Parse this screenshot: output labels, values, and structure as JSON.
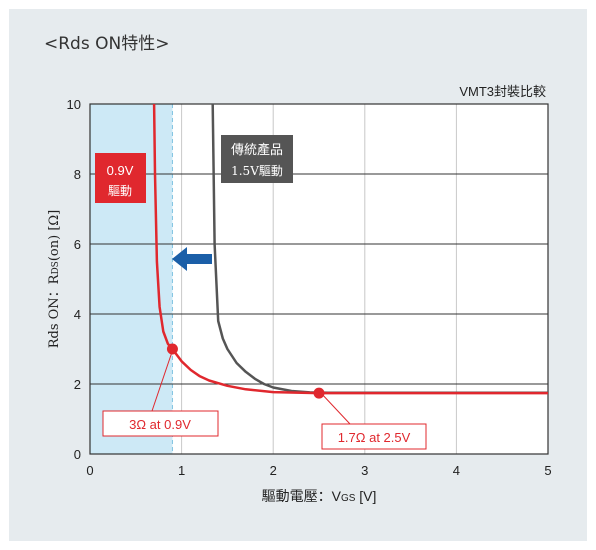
{
  "page": {
    "title": "<Rds ON特性>"
  },
  "chart_data": {
    "type": "line",
    "title": "",
    "subtitle": "VMT3封裝比較",
    "xlabel": {
      "main": "驅動電壓：V",
      "subscript": "GS",
      "unit": " [V]"
    },
    "ylabel": {
      "main": "Rds ON：R",
      "subscript": "DS",
      "unit": "(on) [Ω]"
    },
    "xlim": [
      0,
      5
    ],
    "ylim": [
      0,
      10
    ],
    "x_ticks": [
      "0",
      "1",
      "2",
      "3",
      "4",
      "5"
    ],
    "y_ticks": [
      "0",
      "2",
      "4",
      "6",
      "8",
      "10"
    ],
    "grid": true,
    "shaded_region": {
      "x_from": 0,
      "x_to": 0.9,
      "color": "#cde9f6"
    },
    "dashed_line_x": 0.9,
    "series": [
      {
        "name": "傳統產品 1.5V驅動",
        "color": "#555555",
        "x": [
          1.34,
          1.36,
          1.4,
          1.45,
          1.5,
          1.6,
          1.7,
          1.8,
          1.9,
          2.0,
          2.2,
          2.4,
          2.6,
          3.0,
          4.0,
          5.0
        ],
        "y": [
          10.0,
          6.0,
          3.8,
          3.3,
          3.0,
          2.6,
          2.35,
          2.15,
          2.0,
          1.9,
          1.8,
          1.76,
          1.75,
          1.75,
          1.75,
          1.75
        ]
      },
      {
        "name": "0.9V 驅動",
        "color": "#e0282e",
        "x": [
          0.7,
          0.71,
          0.73,
          0.76,
          0.8,
          0.85,
          0.9,
          1.0,
          1.1,
          1.2,
          1.3,
          1.5,
          1.7,
          2.0,
          2.5,
          3.0,
          4.0,
          5.0
        ],
        "y": [
          10.0,
          8.0,
          5.5,
          4.2,
          3.5,
          3.15,
          3.0,
          2.65,
          2.4,
          2.22,
          2.1,
          1.95,
          1.85,
          1.77,
          1.74,
          1.74,
          1.74,
          1.74
        ]
      }
    ],
    "markers": [
      {
        "x": 0.9,
        "y": 3.0,
        "label": "3Ω at 0.9V"
      },
      {
        "x": 2.5,
        "y": 1.74,
        "label": "1.7Ω at 2.5V"
      }
    ],
    "annotations": {
      "drive_09_line1": "0.9V",
      "drive_09_line2": "驅動",
      "conventional_line1": "傳統產品",
      "conventional_line2": "1.5V驅動"
    },
    "colors": {
      "red": "#e0282e",
      "dark": "#555555",
      "arrow": "#1b5fa8",
      "shade": "#cde9f6"
    }
  }
}
